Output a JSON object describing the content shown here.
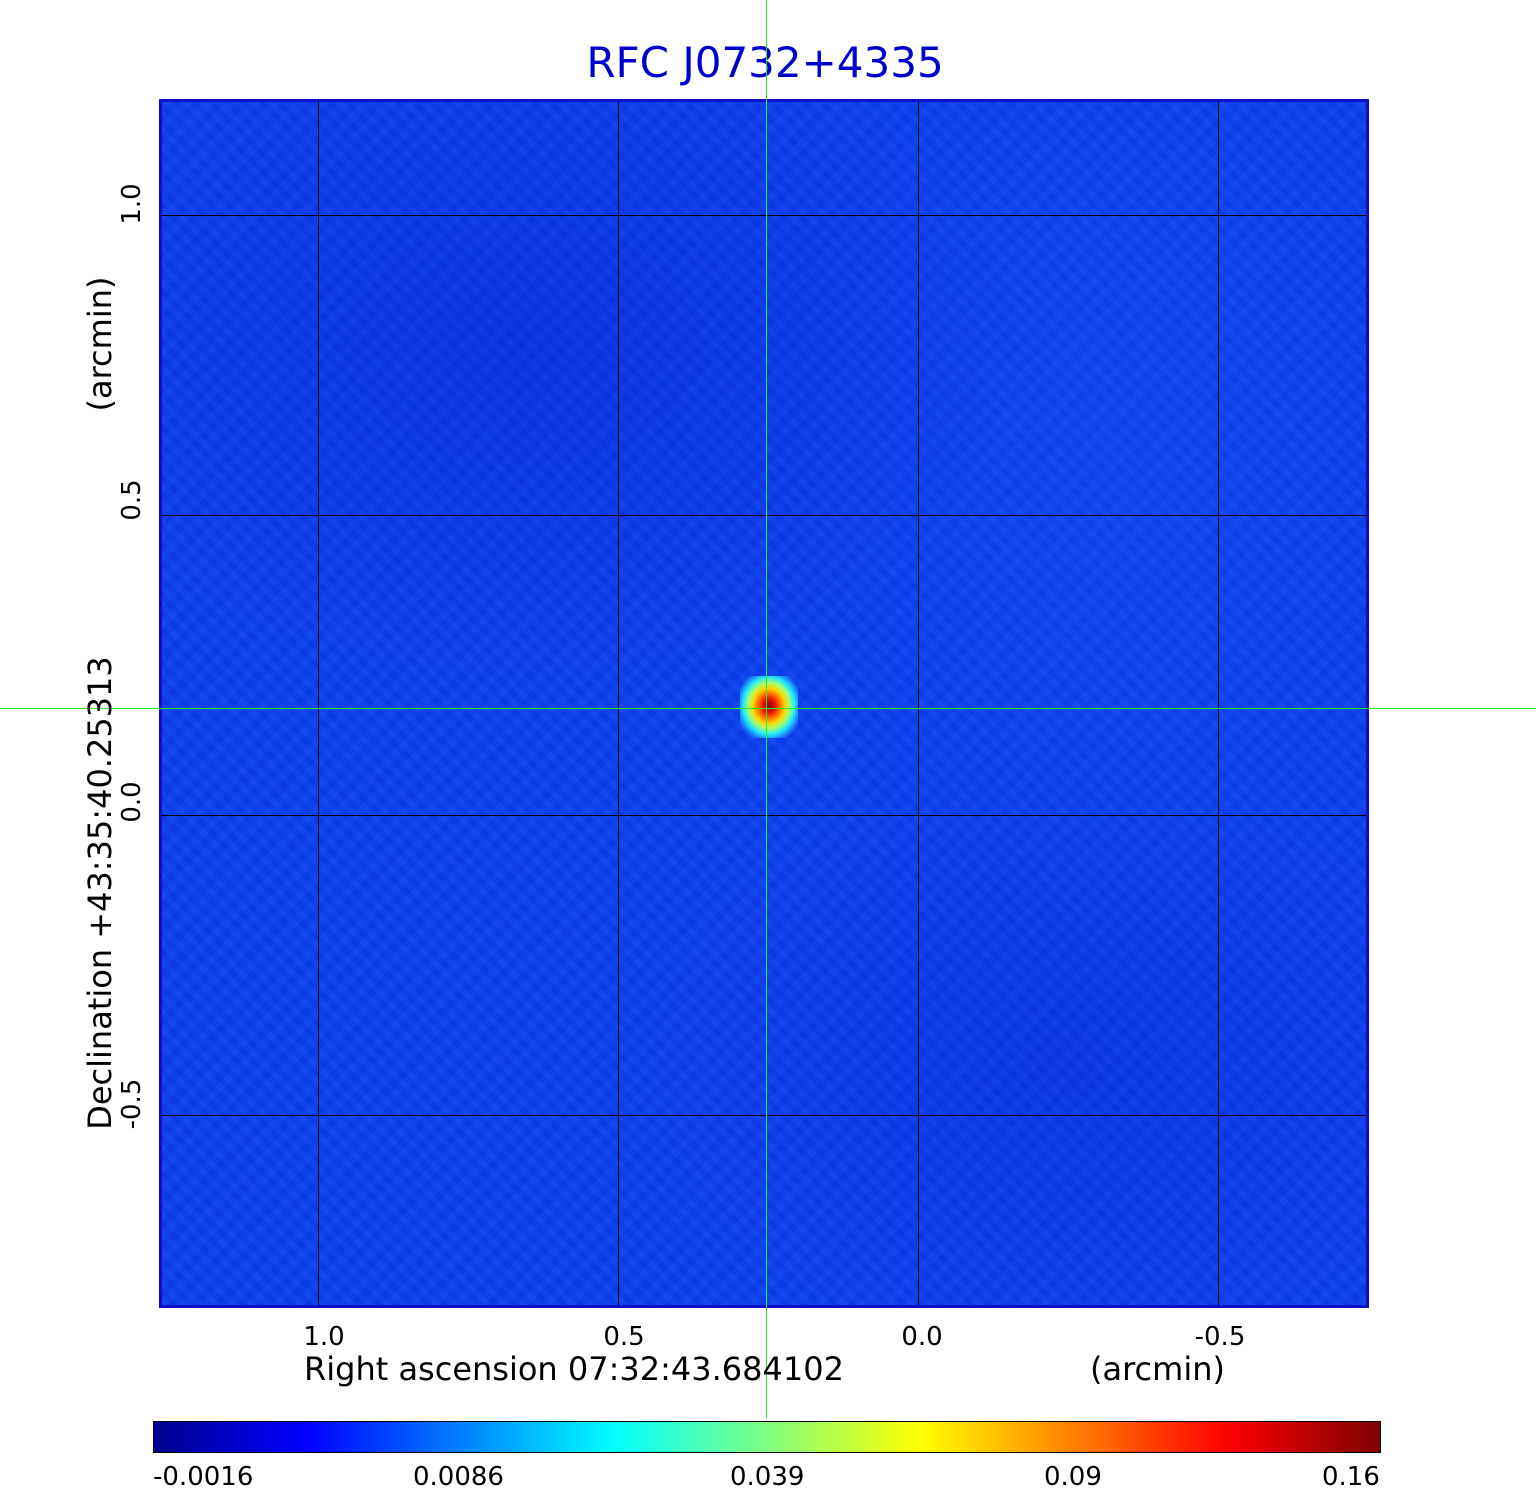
{
  "title": "RFC J0732+4335",
  "x_axis": {
    "label": "Right ascension  07:32:43.684102",
    "unit": "(arcmin)",
    "ticks": [
      "1.0",
      "0.5",
      "0.0",
      "-0.5"
    ]
  },
  "y_axis": {
    "label": "Declination  +43:35:40.25313",
    "unit": "(arcmin)",
    "ticks": [
      "1.0",
      "0.5",
      "0.0",
      "-0.5"
    ]
  },
  "colorbar": {
    "labels": [
      "-0.0016",
      "0.0086",
      "0.039",
      "0.09",
      "0.16"
    ],
    "colors": [
      "#00008f",
      "#0000ff",
      "#0080ff",
      "#00ffff",
      "#80ff80",
      "#ffff00",
      "#ff8000",
      "#ff0000",
      "#800000"
    ]
  },
  "colors": {
    "title": "#0000cc",
    "frame": "#1010c8",
    "crosshair": "#22ee22",
    "background_field": "#0b40f2"
  }
}
